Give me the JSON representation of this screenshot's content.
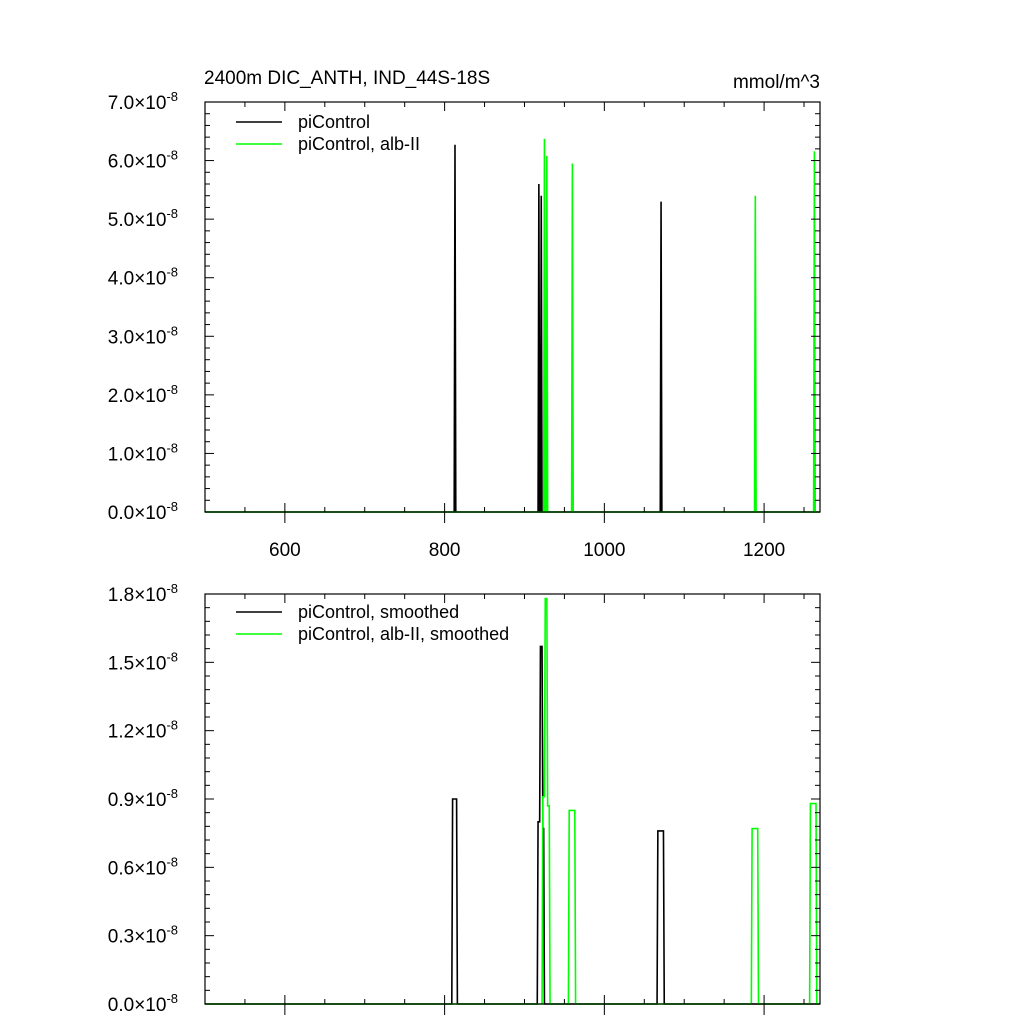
{
  "chart_data": [
    {
      "type": "line",
      "title": "2400m DIC_ANTH, IND_44S-18S",
      "units": "mmol/m^3",
      "xlim": [
        500,
        1270
      ],
      "ylim": [
        0,
        7e-08
      ],
      "x_ticks": [
        600,
        800,
        1000,
        1200
      ],
      "x_tick_labels": [
        "600",
        "800",
        "1000",
        "1200"
      ],
      "y_ticks": [
        0,
        1e-08,
        2e-08,
        3e-08,
        4e-08,
        5e-08,
        6e-08,
        7e-08
      ],
      "y_tick_labels": [
        {
          "mantissa": "0.0",
          "times": "×10",
          "exp": "-8"
        },
        {
          "mantissa": "1.0",
          "times": "×10",
          "exp": "-8"
        },
        {
          "mantissa": "2.0",
          "times": "×10",
          "exp": "-8"
        },
        {
          "mantissa": "3.0",
          "times": "×10",
          "exp": "-8"
        },
        {
          "mantissa": "4.0",
          "times": "×10",
          "exp": "-8"
        },
        {
          "mantissa": "5.0",
          "times": "×10",
          "exp": "-8"
        },
        {
          "mantissa": "6.0",
          "times": "×10",
          "exp": "-8"
        },
        {
          "mantissa": "7.0",
          "times": "×10",
          "exp": "-8"
        }
      ],
      "legend": "top-left",
      "series": [
        {
          "name": "piControl",
          "color": "#000000",
          "x": [
            500,
            812,
            813,
            814,
            917,
            918,
            919,
            920,
            921,
            922,
            923,
            924,
            1070,
            1071,
            1072,
            1270
          ],
          "y": [
            0,
            0,
            6.27e-08,
            0,
            0,
            5.6e-08,
            0,
            0,
            5.4e-08,
            0,
            0,
            0,
            0,
            5.3e-08,
            0,
            0
          ]
        },
        {
          "name": "piControl, alb-II",
          "color": "#00ff00",
          "x": [
            500,
            924,
            925,
            926,
            927,
            928,
            929,
            959,
            960,
            961,
            1188,
            1189,
            1190,
            1262,
            1263,
            1264,
            1270
          ],
          "y": [
            0,
            0,
            6.37e-08,
            0,
            0,
            6.08e-08,
            0,
            0,
            5.95e-08,
            0,
            0,
            5.4e-08,
            0,
            0,
            6.16e-08,
            0,
            0
          ]
        }
      ]
    },
    {
      "type": "line",
      "xlim": [
        500,
        1270
      ],
      "ylim": [
        0,
        1.8e-08
      ],
      "x_ticks": [
        600,
        800,
        1000,
        1200
      ],
      "y_ticks": [
        0,
        3e-09,
        6e-09,
        9e-09,
        1.2e-08,
        1.5e-08,
        1.8e-08
      ],
      "y_tick_labels": [
        {
          "mantissa": "0.0",
          "times": "×10",
          "exp": "-8"
        },
        {
          "mantissa": "0.3",
          "times": "×10",
          "exp": "-8"
        },
        {
          "mantissa": "0.6",
          "times": "×10",
          "exp": "-8"
        },
        {
          "mantissa": "0.9",
          "times": "×10",
          "exp": "-8"
        },
        {
          "mantissa": "1.2",
          "times": "×10",
          "exp": "-8"
        },
        {
          "mantissa": "1.5",
          "times": "×10",
          "exp": "-8"
        },
        {
          "mantissa": "1.8",
          "times": "×10",
          "exp": "-8"
        }
      ],
      "legend": "top-left",
      "series": [
        {
          "name": "piControl, smoothed",
          "color": "#000000",
          "x": [
            500,
            809,
            810,
            812,
            815,
            816,
            916,
            917,
            919,
            920,
            922,
            923,
            924,
            925,
            1066,
            1067,
            1074,
            1075,
            1270
          ],
          "y": [
            0,
            0,
            9e-09,
            9e-09,
            9e-09,
            0,
            0,
            8e-09,
            8e-09,
            1.57e-08,
            1.57e-08,
            7.7e-09,
            7.7e-09,
            0,
            0,
            7.6e-09,
            7.6e-09,
            0,
            0
          ]
        },
        {
          "name": "piControl, alb-II, smoothed",
          "color": "#00ff00",
          "x": [
            500,
            922,
            923,
            925,
            926,
            928,
            929,
            931,
            932,
            955,
            956,
            963,
            964,
            1184,
            1185,
            1192,
            1193,
            1257,
            1258,
            1265,
            1266,
            1270
          ],
          "y": [
            0,
            0,
            9.1e-09,
            9.1e-09,
            1.78e-08,
            1.78e-08,
            8.7e-09,
            8.7e-09,
            0,
            0,
            8.5e-09,
            8.5e-09,
            0,
            0,
            7.7e-09,
            7.7e-09,
            0,
            0,
            8.8e-09,
            8.8e-09,
            0,
            0
          ]
        }
      ]
    }
  ]
}
